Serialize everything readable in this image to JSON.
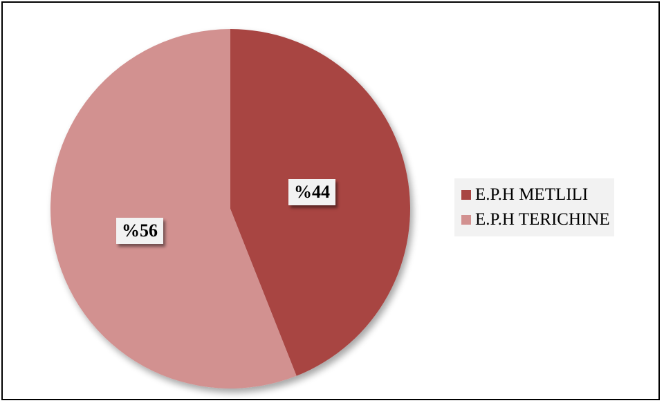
{
  "chart_data": {
    "type": "pie",
    "categories": [
      "E.P.H METLILI",
      "E.P.H TERICHINE"
    ],
    "values": [
      44,
      56
    ],
    "data_labels": [
      "%44",
      "%56"
    ],
    "colors": [
      "#a84543",
      "#d29190"
    ],
    "legend_position": "right"
  }
}
